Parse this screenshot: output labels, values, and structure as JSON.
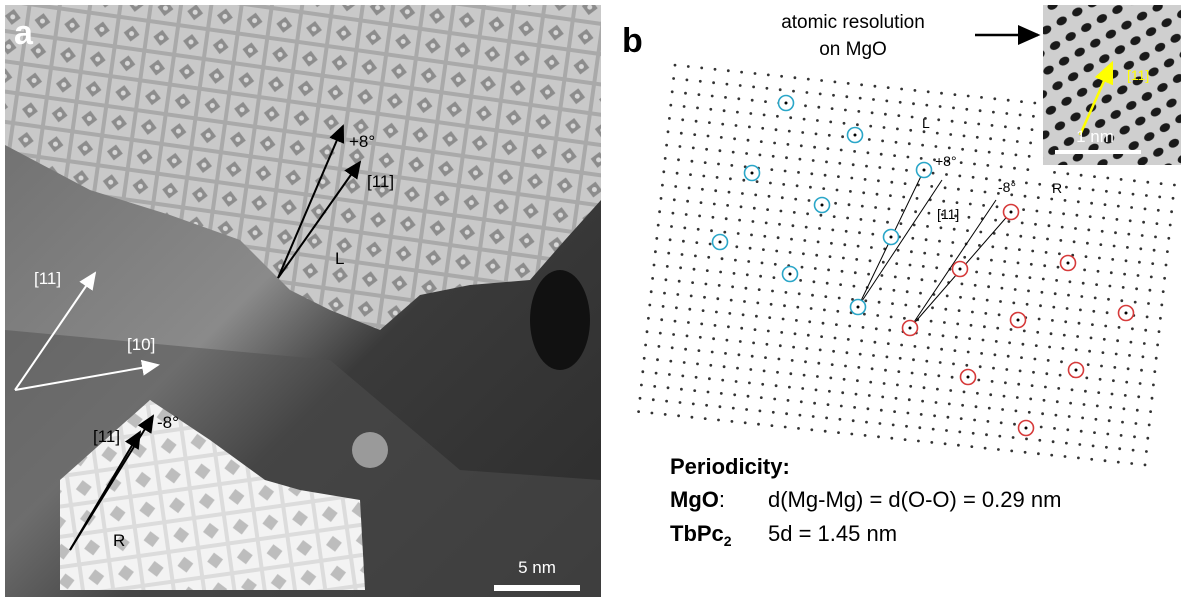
{
  "panel_a": {
    "label": "a",
    "annotations": {
      "plus8": "+8°",
      "dir11_L": "[11]",
      "L": "L",
      "axis11": "[11]",
      "axis10": "[10]",
      "dir11_R": "[11]",
      "minus8": "-8°",
      "R": "R"
    },
    "scale_bar": "5 nm"
  },
  "panel_b": {
    "label": "b",
    "inset_caption": [
      "atomic resolution",
      "on MgO"
    ],
    "inset_scale_bar": "1 nm",
    "inset_direction": "[11]",
    "lattice_labels": {
      "L": "L",
      "plus8": "+8°",
      "minus8": "-8°",
      "dir11": "[11]",
      "R": "R"
    }
  },
  "periodicity": {
    "title": "Periodicity:",
    "rows": [
      {
        "material": "MgO",
        "separator": ":",
        "value": "d(Mg-Mg) = d(O-O) = 0.29 nm"
      },
      {
        "material": "TbPc",
        "subscript": "2",
        "value": "5d = 1.45 nm"
      }
    ]
  }
}
